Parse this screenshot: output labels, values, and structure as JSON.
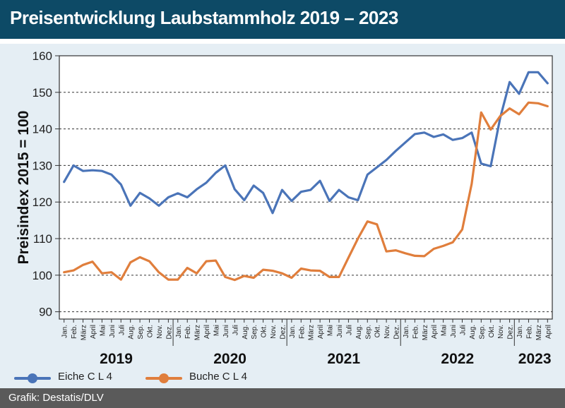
{
  "header": {
    "title": "Preisentwicklung Laubstammholz 2019 – 2023"
  },
  "footer": {
    "credit": "Grafik: Destatis/DLV"
  },
  "colors": {
    "eiche": "#4a74b8",
    "buche": "#e07e3c",
    "header": "#0d4a66",
    "panel": "#e5eef4"
  },
  "chart_data": {
    "type": "line",
    "ylabel": "Preisindex 2015 = 100",
    "ylim": [
      88,
      160
    ],
    "yticks": [
      90,
      100,
      110,
      120,
      130,
      140,
      150,
      160
    ],
    "grid": true,
    "legend_position": "bottom-left",
    "month_labels": [
      "Jan.",
      "Feb.",
      "März",
      "April",
      "Mai",
      "Juni",
      "Juli",
      "Aug.",
      "Sep.",
      "Okt.",
      "Nov.",
      "Dez."
    ],
    "years": [
      "2019",
      "2020",
      "2021",
      "2022",
      "2023"
    ],
    "series": [
      {
        "name": "Eiche C L 4",
        "values": [
          125.5,
          130,
          128.5,
          128.7,
          128.5,
          127.5,
          124.8,
          119,
          122.5,
          121,
          119,
          121.3,
          122.4,
          121.3,
          123.5,
          125.3,
          128,
          130,
          123.5,
          120.5,
          124.5,
          122.5,
          117,
          123.3,
          120.3,
          122.8,
          123.3,
          125.8,
          120.3,
          123.3,
          121.3,
          120.5,
          127.5,
          129.5,
          131.5,
          134,
          136.3,
          138.6,
          139,
          137.8,
          138.5,
          137,
          137.5,
          139,
          130.5,
          129.8,
          143,
          152.8,
          149.6,
          155.5,
          155.5,
          152.5
        ]
      },
      {
        "name": "Buche C L 4",
        "values": [
          100.8,
          101.3,
          102.8,
          103.7,
          100.5,
          100.8,
          98.8,
          103.5,
          104.9,
          103.8,
          100.8,
          98.8,
          98.8,
          102,
          100.5,
          103.8,
          104,
          99.5,
          98.7,
          99.8,
          99.3,
          101.5,
          101.2,
          100.5,
          99.3,
          101.8,
          101.3,
          101.2,
          99.5,
          99.5,
          104.8,
          110,
          114.7,
          113.9,
          106.5,
          106.8,
          106,
          105.3,
          105.2,
          107.2,
          108,
          109,
          112.5,
          125,
          144.5,
          139.8,
          143.5,
          145.6,
          144,
          147.2,
          147,
          146.2
        ]
      }
    ]
  }
}
